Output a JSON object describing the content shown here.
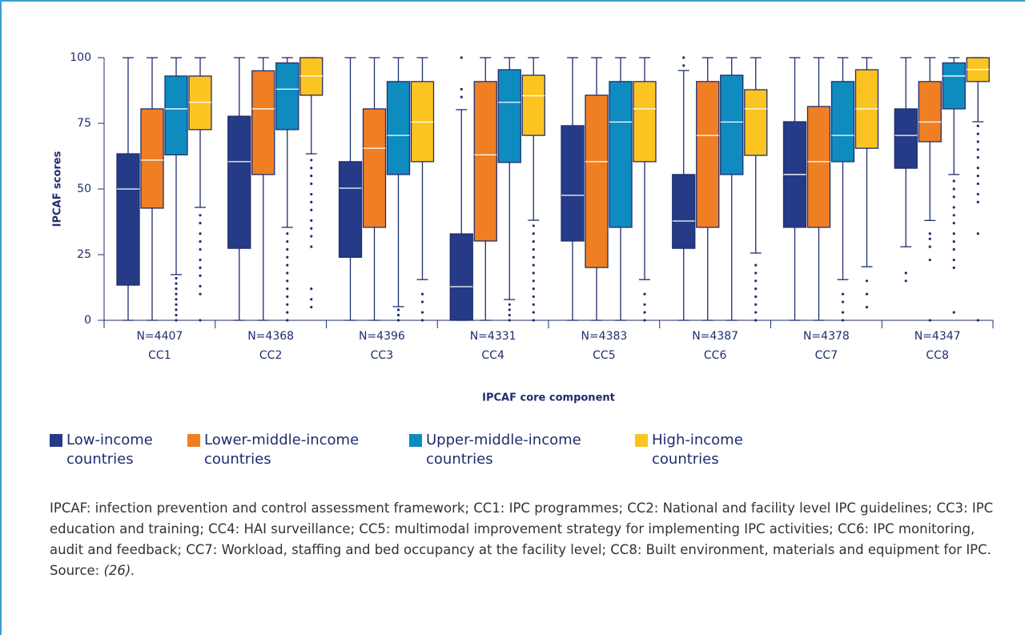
{
  "chart_data": {
    "type": "box",
    "ylabel": "IPCAF scores",
    "xlabel": "IPCAF core component",
    "categories": [
      "CC1",
      "CC2",
      "CC3",
      "CC4",
      "CC5",
      "CC6",
      "CC7",
      "CC8"
    ],
    "n_labels": [
      "N=4407",
      "N=4368",
      "N=4396",
      "N=4331",
      "N=4383",
      "N=4387",
      "N=4378",
      "N=4347"
    ],
    "ylim": [
      0,
      100
    ],
    "yticks": [
      0,
      25,
      50,
      75,
      100
    ],
    "series": [
      {
        "name": "Low-income countries",
        "color": "#253b87",
        "boxes": [
          {
            "min": 0,
            "q1": 13.4,
            "median": 50,
            "q3": 63.4,
            "max": 100,
            "outliers": []
          },
          {
            "min": 0,
            "q1": 27.4,
            "median": 60.4,
            "q3": 77.7,
            "max": 100,
            "outliers": []
          },
          {
            "min": 0,
            "q1": 24,
            "median": 50.3,
            "q3": 60.4,
            "max": 100,
            "outliers": []
          },
          {
            "min": 0,
            "q1": 0,
            "median": 12.8,
            "q3": 32.9,
            "max": 80.2,
            "outliers": [
              85,
              88,
              100
            ]
          },
          {
            "min": 0,
            "q1": 30.2,
            "median": 47.6,
            "q3": 74.1,
            "max": 100,
            "outliers": []
          },
          {
            "min": 0,
            "q1": 27.4,
            "median": 37.8,
            "q3": 55.5,
            "max": 95.1,
            "outliers": [
              97,
              100
            ]
          },
          {
            "min": 0,
            "q1": 35.4,
            "median": 55.5,
            "q3": 75.6,
            "max": 100,
            "outliers": []
          },
          {
            "min": 28,
            "q1": 57.9,
            "median": 70.4,
            "q3": 80.5,
            "max": 100,
            "outliers": [
              15,
              18
            ]
          }
        ]
      },
      {
        "name": "Lower-middle-income countries",
        "color": "#f07f24",
        "boxes": [
          {
            "min": 0,
            "q1": 42.7,
            "median": 61,
            "q3": 80.5,
            "max": 100,
            "outliers": []
          },
          {
            "min": 0,
            "q1": 55.5,
            "median": 80.5,
            "q3": 95,
            "max": 100,
            "outliers": []
          },
          {
            "min": 0,
            "q1": 35.4,
            "median": 65.5,
            "q3": 80.5,
            "max": 100,
            "outliers": []
          },
          {
            "min": 0,
            "q1": 30.2,
            "median": 63,
            "q3": 90.9,
            "max": 100,
            "outliers": []
          },
          {
            "min": 0,
            "q1": 20.1,
            "median": 60.4,
            "q3": 85.7,
            "max": 100,
            "outliers": []
          },
          {
            "min": 0,
            "q1": 35.4,
            "median": 70.4,
            "q3": 90.9,
            "max": 100,
            "outliers": []
          },
          {
            "min": 0,
            "q1": 35.4,
            "median": 60.4,
            "q3": 81.4,
            "max": 100,
            "outliers": []
          },
          {
            "min": 38,
            "q1": 68,
            "median": 75.5,
            "q3": 90.9,
            "max": 100,
            "outliers": [
              0,
              23,
              28,
              31,
              33
            ]
          }
        ]
      },
      {
        "name": "Upper-middle-income countries",
        "color": "#0e8cc0",
        "boxes": [
          {
            "min": 17.4,
            "q1": 63,
            "median": 80.5,
            "q3": 93,
            "max": 100,
            "outliers": [
              0,
              2,
              4,
              6,
              8,
              10,
              12,
              14,
              16
            ]
          },
          {
            "min": 35.4,
            "q1": 72.6,
            "median": 88,
            "q3": 98,
            "max": 100,
            "outliers": [
              0,
              3,
              6,
              9,
              12,
              15,
              18,
              21,
              24,
              27,
              30,
              33
            ]
          },
          {
            "min": 5.2,
            "q1": 55.5,
            "median": 70.4,
            "q3": 90.9,
            "max": 100,
            "outliers": [
              0,
              2,
              4
            ]
          },
          {
            "min": 7.9,
            "q1": 60.1,
            "median": 83,
            "q3": 95.4,
            "max": 100,
            "outliers": [
              0,
              2,
              4,
              6
            ]
          },
          {
            "min": 0,
            "q1": 35.4,
            "median": 75.5,
            "q3": 90.9,
            "max": 100,
            "outliers": []
          },
          {
            "min": 0,
            "q1": 55.5,
            "median": 75.5,
            "q3": 93.3,
            "max": 100,
            "outliers": []
          },
          {
            "min": 15.5,
            "q1": 60.4,
            "median": 70.4,
            "q3": 90.9,
            "max": 100,
            "outliers": [
              0,
              3,
              7,
              10
            ]
          },
          {
            "min": 55.5,
            "q1": 80.5,
            "median": 93,
            "q3": 98,
            "max": 100,
            "outliers": [
              3,
              20,
              23,
              27,
              30,
              33,
              37,
              40,
              43,
              47,
              50,
              53
            ]
          }
        ]
      },
      {
        "name": "High-income countries",
        "color": "#fcc421",
        "boxes": [
          {
            "min": 43,
            "q1": 72.6,
            "median": 83,
            "q3": 93,
            "max": 100,
            "outliers": [
              0,
              10,
              13,
              17,
              20,
              23,
              27,
              30,
              33,
              37,
              40
            ]
          },
          {
            "min": 63.4,
            "q1": 85.7,
            "median": 93,
            "q3": 100,
            "max": 100,
            "outliers": [
              5,
              8,
              12,
              28,
              32,
              35,
              38,
              42,
              45,
              48,
              52,
              55,
              58,
              61
            ]
          },
          {
            "min": 15.5,
            "q1": 60.4,
            "median": 75.5,
            "q3": 90.9,
            "max": 100,
            "outliers": [
              0,
              3,
              7,
              10
            ]
          },
          {
            "min": 38.1,
            "q1": 70.4,
            "median": 85.5,
            "q3": 93.3,
            "max": 100,
            "outliers": [
              0,
              3,
              6,
              9,
              12,
              15,
              18,
              21,
              24,
              27,
              30,
              33,
              36
            ]
          },
          {
            "min": 15.5,
            "q1": 60.4,
            "median": 80.5,
            "q3": 90.9,
            "max": 100,
            "outliers": [
              0,
              3,
              6,
              10
            ]
          },
          {
            "min": 25.6,
            "q1": 62.8,
            "median": 80.5,
            "q3": 87.8,
            "max": 100,
            "outliers": [
              0,
              3,
              6,
              9,
              12,
              15,
              18,
              21
            ]
          },
          {
            "min": 20.4,
            "q1": 65.5,
            "median": 80.5,
            "q3": 95.4,
            "max": 100,
            "outliers": [
              5,
              10,
              15
            ]
          },
          {
            "min": 75.6,
            "q1": 90.9,
            "median": 95.5,
            "q3": 100,
            "max": 100,
            "outliers": [
              0,
              33,
              45,
              48,
              52,
              55,
              58,
              62,
              65,
              68,
              71,
              74
            ]
          }
        ]
      }
    ],
    "footnote": "IPCAF: infection prevention and control assessment framework; CC1: IPC programmes; CC2:  National and facility level IPC guidelines; CC3: IPC education and training; CC4: HAI surveillance; CC5: multimodal improvement strategy for implementing IPC activities; CC6: IPC monitoring, audit and feedback; CC7: Workload, staffing and bed occupancy at the facility level; CC8: Built environment, materials and equipment for IPC.",
    "source_label": "Source:",
    "source_ref": "(26)."
  }
}
